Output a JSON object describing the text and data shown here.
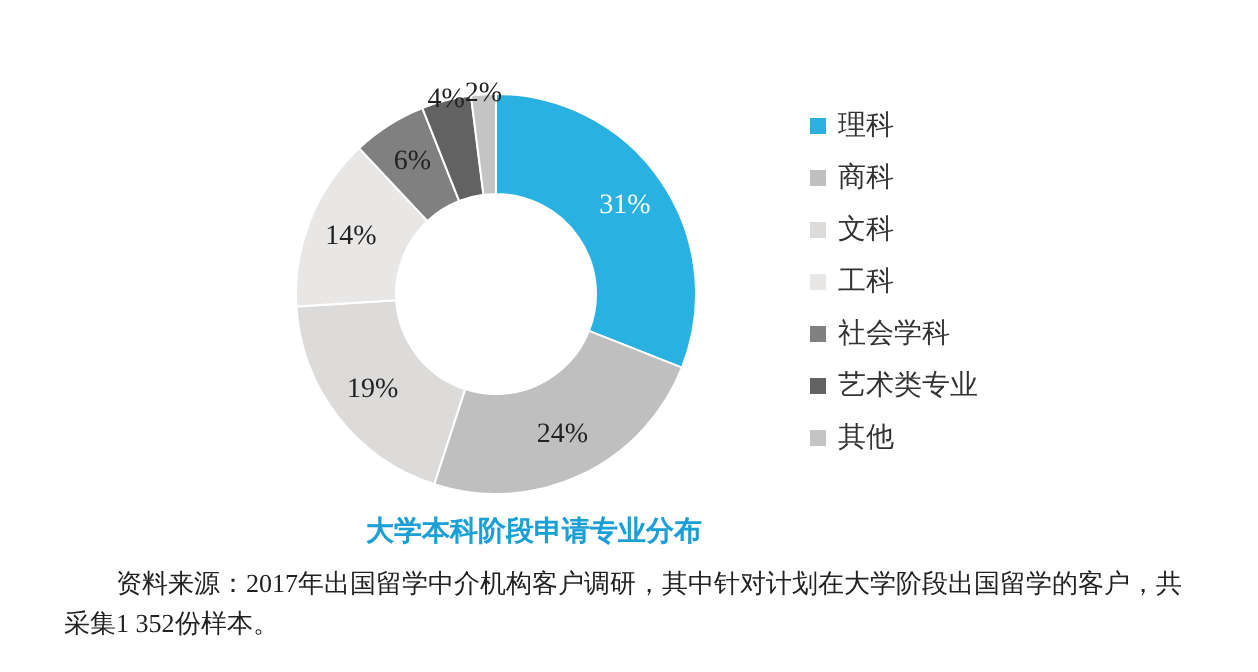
{
  "chart_data": {
    "type": "donut",
    "title": "大学本科阶段申请专业分布",
    "categories": [
      "理科",
      "商科",
      "文科",
      "工科",
      "社会学科",
      "艺术类专业",
      "其他"
    ],
    "values": [
      31,
      24,
      19,
      14,
      6,
      4,
      2
    ],
    "colors": [
      "#29b1e1",
      "#bfbfbf",
      "#dcdbda",
      "#e8e7e6",
      "#808080",
      "#626262",
      "#c4c4c4"
    ],
    "value_labels": [
      "31%",
      "24%",
      "19%",
      "14%",
      "6%",
      "4%",
      "2%"
    ],
    "legend": "right",
    "annotations": [
      "资料来源：2017年出国留学中介机构客户调研，其中针对计划在大学阶段出国留学的客户，共采集1 352份样本。"
    ]
  }
}
